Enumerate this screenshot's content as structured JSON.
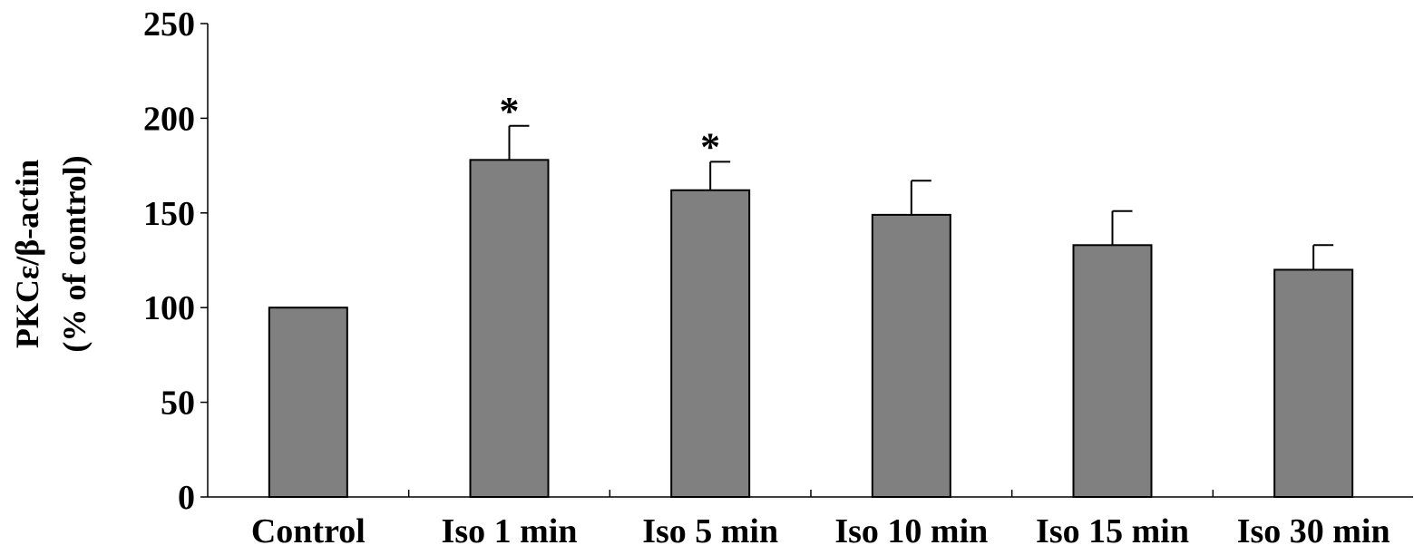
{
  "chart_data": {
    "type": "bar",
    "title": "",
    "xlabel": "",
    "ylabel_lines": [
      "PKCε/β-actin",
      "(% of control)"
    ],
    "categories": [
      "Control",
      "Iso 1 min",
      "Iso 5 min",
      "Iso 10 min",
      "Iso 15 min",
      "Iso 30 min"
    ],
    "values": [
      100,
      178,
      162,
      149,
      133,
      120
    ],
    "error_upper": [
      0,
      18,
      15,
      18,
      18,
      13
    ],
    "annotations": [
      "",
      "*",
      "*",
      "",
      "",
      ""
    ],
    "ylim": [
      0,
      250
    ],
    "yticks": [
      0,
      50,
      100,
      150,
      200,
      250
    ],
    "bar_color": "#808080",
    "grid": false,
    "legend": "none"
  }
}
